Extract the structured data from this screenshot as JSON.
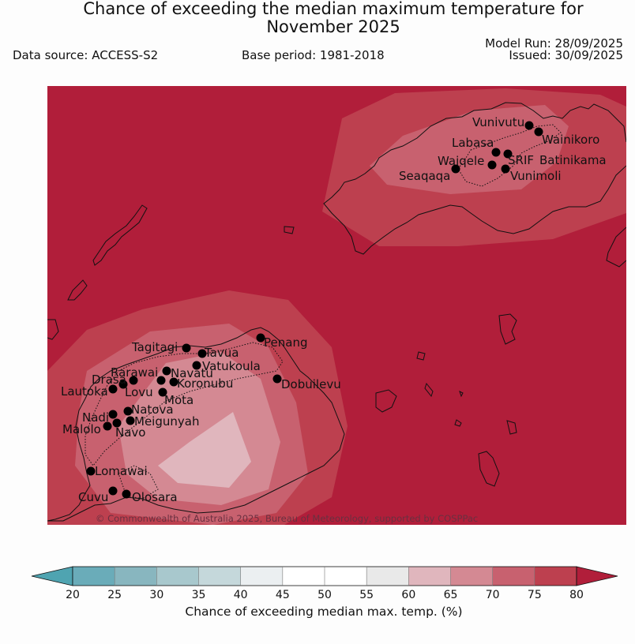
{
  "header": {
    "title_line1": "Chance of exceeding the median maximum temperature for",
    "title_line2": "November 2025",
    "data_source": "Data source: ACCESS-S2",
    "base_period": "Base period: 1981-2018",
    "model_run": "Model Run: 28/09/2025",
    "issued": "Issued: 30/09/2025"
  },
  "map": {
    "credit": "© Commonwealth of Australia 2025, Bureau of Meteorology, supported by COSPPac",
    "places": [
      {
        "name": "Vunivutu"
      },
      {
        "name": "Wainikoro"
      },
      {
        "name": "Labasa"
      },
      {
        "name": "SRIF"
      },
      {
        "name": "Batinikama"
      },
      {
        "name": "Waiqele"
      },
      {
        "name": "Seaqaqa"
      },
      {
        "name": "Vunimoli"
      },
      {
        "name": "Penang"
      },
      {
        "name": "Tagitagi"
      },
      {
        "name": "Tavua"
      },
      {
        "name": "Vatukoula"
      },
      {
        "name": "Rarawai"
      },
      {
        "name": "Navatu"
      },
      {
        "name": "Drasa"
      },
      {
        "name": "Koronubu"
      },
      {
        "name": "Lautoka"
      },
      {
        "name": "Lovu"
      },
      {
        "name": "Dobuilevu"
      },
      {
        "name": "Mota"
      },
      {
        "name": "Natova"
      },
      {
        "name": "Nadi"
      },
      {
        "name": "Meigunyah"
      },
      {
        "name": "Malolo"
      },
      {
        "name": "Navo"
      },
      {
        "name": "Lomawai"
      },
      {
        "name": "Cuvu"
      },
      {
        "name": "Olosara"
      }
    ]
  },
  "colorbar": {
    "ticks": [
      "20",
      "25",
      "30",
      "35",
      "40",
      "45",
      "50",
      "55",
      "60",
      "65",
      "70",
      "75",
      "80"
    ],
    "colors": [
      "#6aacb9",
      "#88b6bf",
      "#a8c8cd",
      "#c5d8db",
      "#ebeff1",
      "#ffffff",
      "#ffffff",
      "#e9e9e9",
      "#e0b6bd",
      "#d48993",
      "#c8616f",
      "#bd404f"
    ],
    "under_color": "#4fa4b1",
    "over_color": "#b11e3a",
    "label": "Chance of exceeding median max. temp. (%)"
  }
}
